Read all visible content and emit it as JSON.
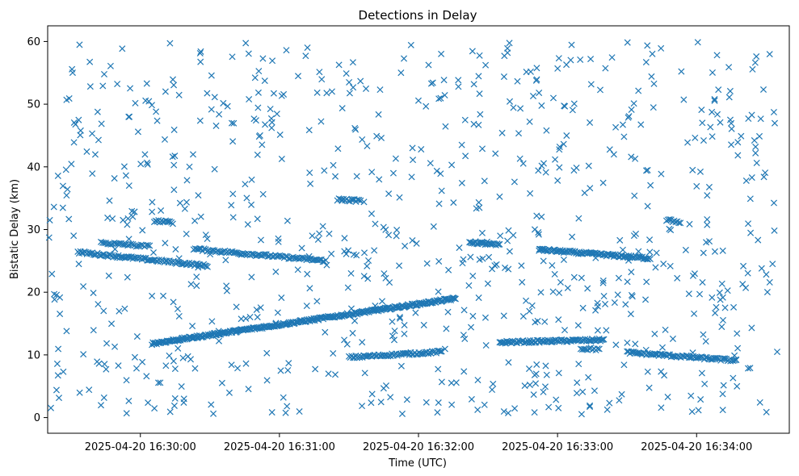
{
  "chart_data": {
    "type": "scatter",
    "title": "Detections in Delay",
    "xlabel": "Time (UTC)",
    "ylabel": "Bistatic Delay (km)",
    "x_ticks": [
      "2025-04-20 16:30:00",
      "2025-04-20 16:31:00",
      "2025-04-20 16:32:00",
      "2025-04-20 16:33:00",
      "2025-04-20 16:34:00"
    ],
    "y_ticks": [
      0,
      10,
      20,
      30,
      40,
      50,
      60
    ],
    "xlim": [
      "2025-04-20 16:29:20",
      "2025-04-20 16:34:40"
    ],
    "ylim": [
      -2.5,
      62.5
    ],
    "marker": "x",
    "color": "#1f77b4",
    "grid": false,
    "tracks": [
      {
        "t0": "2025-04-20 16:29:33",
        "t1": "2025-04-20 16:30:29",
        "y0": 26.4,
        "y1": 24.2,
        "n": 100
      },
      {
        "t0": "2025-04-20 16:30:23",
        "t1": "2025-04-20 16:31:20",
        "y0": 26.9,
        "y1": 25.0,
        "n": 90
      },
      {
        "t0": "2025-04-20 16:29:43",
        "t1": "2025-04-20 16:30:04",
        "y0": 27.9,
        "y1": 27.3,
        "n": 30
      },
      {
        "t0": "2025-04-20 16:30:06",
        "t1": "2025-04-20 16:30:14",
        "y0": 31.4,
        "y1": 31.1,
        "n": 14
      },
      {
        "t0": "2025-04-20 16:30:05",
        "t1": "2025-04-20 16:32:16",
        "y0": 11.8,
        "y1": 19.0,
        "n": 320
      },
      {
        "t0": "2025-04-20 16:31:25",
        "t1": "2025-04-20 16:31:35",
        "y0": 34.8,
        "y1": 34.6,
        "n": 16
      },
      {
        "t0": "2025-04-20 16:31:30",
        "t1": "2025-04-20 16:32:10",
        "y0": 9.6,
        "y1": 10.5,
        "n": 70
      },
      {
        "t0": "2025-04-20 16:32:22",
        "t1": "2025-04-20 16:32:35",
        "y0": 28.0,
        "y1": 27.5,
        "n": 26
      },
      {
        "t0": "2025-04-20 16:32:35",
        "t1": "2025-04-20 16:33:20",
        "y0": 12.0,
        "y1": 12.4,
        "n": 90
      },
      {
        "t0": "2025-04-20 16:32:52",
        "t1": "2025-04-20 16:33:40",
        "y0": 26.8,
        "y1": 25.4,
        "n": 100
      },
      {
        "t0": "2025-04-20 16:33:10",
        "t1": "2025-04-20 16:33:18",
        "y0": 11.0,
        "y1": 10.9,
        "n": 12
      },
      {
        "t0": "2025-04-20 16:33:30",
        "t1": "2025-04-20 16:34:17",
        "y0": 10.4,
        "y1": 9.1,
        "n": 80
      },
      {
        "t0": "2025-04-20 16:33:47",
        "t1": "2025-04-20 16:33:53",
        "y0": 31.5,
        "y1": 31.2,
        "n": 10
      }
    ],
    "noise": {
      "t0": "2025-04-20 16:29:20",
      "t1": "2025-04-20 16:34:35",
      "y0": 0.5,
      "y1": 60,
      "n": 820
    }
  }
}
